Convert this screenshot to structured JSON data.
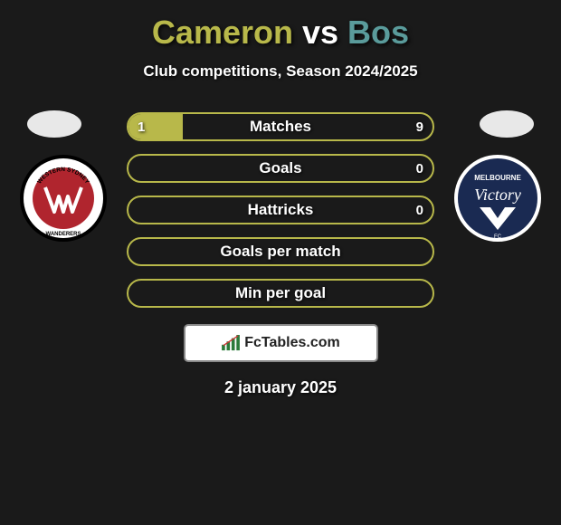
{
  "title": {
    "player1": "Cameron",
    "vs": "vs",
    "player2": "Bos"
  },
  "subtitle": "Club competitions, Season 2024/2025",
  "colors": {
    "player1": "#b8b84a",
    "player2": "#5a9b9b",
    "border_olive": "#b8b84a",
    "bar_bg": "transparent"
  },
  "stats": [
    {
      "label": "Matches",
      "left_val": "1",
      "right_val": "9",
      "left_pct": 18,
      "right_pct": 0,
      "show_vals": true
    },
    {
      "label": "Goals",
      "left_val": "",
      "right_val": "0",
      "left_pct": 0,
      "right_pct": 0,
      "show_vals": true
    },
    {
      "label": "Hattricks",
      "left_val": "",
      "right_val": "0",
      "left_pct": 0,
      "right_pct": 0,
      "show_vals": true
    },
    {
      "label": "Goals per match",
      "left_val": "",
      "right_val": "",
      "left_pct": 0,
      "right_pct": 0,
      "show_vals": false
    },
    {
      "label": "Min per goal",
      "left_val": "",
      "right_val": "",
      "left_pct": 0,
      "right_pct": 0,
      "show_vals": false
    }
  ],
  "badges": {
    "left": {
      "name": "Western Sydney Wanderers",
      "ring_color": "#000000",
      "inner_color": "#b0252e",
      "text": "WESTERN SYDNEY",
      "text2": "WANDERERS"
    },
    "right": {
      "name": "Melbourne Victory",
      "ring_color": "#ffffff",
      "inner_color": "#1a2a52",
      "text_top": "MELBOURNE",
      "text_brand": "Victory"
    }
  },
  "watermark": {
    "text": "FcTables.com"
  },
  "date": "2 january 2025"
}
